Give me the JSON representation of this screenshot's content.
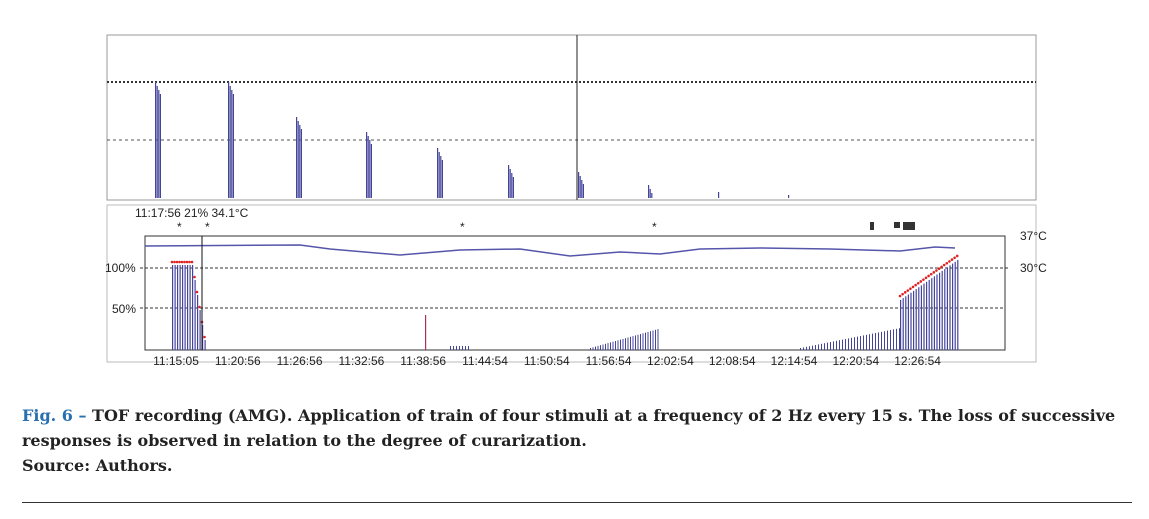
{
  "figure": {
    "monitor": {
      "status": "11:17:56  21% 34.1°C",
      "markers": [
        "*",
        "*",
        "*",
        "*"
      ],
      "y_labels": [
        "100%",
        "50%"
      ],
      "temp_labels": [
        "37°C",
        "30°C"
      ],
      "time_labels": [
        "11:15:05",
        "11:20:56",
        "11:26:56",
        "11:32:56",
        "11:38:56",
        "11:44:54",
        "11:50:54",
        "11:56:54",
        "12:02:54",
        "12:08:54",
        "12:14:54",
        "12:20:54",
        "12:26:54"
      ]
    },
    "caption": {
      "label": "Fig. 6 –",
      "text": "TOF recording (AMG). Application of train of four stimuli at a frequency of 2 Hz every 15 s. The loss of successive responses is observed in relation to the degree of curarization.",
      "source": "Source: Authors."
    }
  }
}
